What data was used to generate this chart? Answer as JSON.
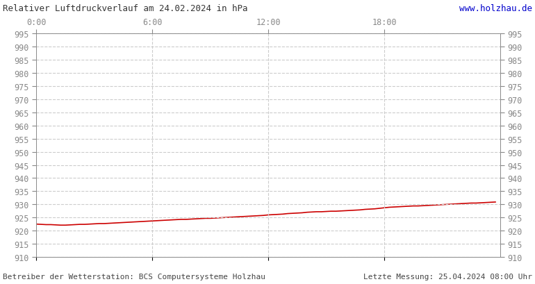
{
  "title_left": "Relativer Luftdruckverlauf am 24.02.2024 in hPa",
  "title_right": "www.holzhau.de",
  "title_right_color": "#0000cc",
  "footer_left": "Betreiber der Wetterstation: BCS Computersysteme Holzhau",
  "footer_right": "Letzte Messung: 25.04.2024 08:00 Uhr",
  "footer_color": "#444444",
  "background_color": "#ffffff",
  "plot_bg_color": "#ffffff",
  "line_color": "#cc0000",
  "line_width": 1.2,
  "ylim": [
    910,
    995
  ],
  "ytick_step": 5,
  "xtick_positions": [
    0,
    6,
    12,
    18
  ],
  "xtick_labels": [
    "0:00",
    "6:00",
    "12:00",
    "18:00"
  ],
  "grid_color": "#cccccc",
  "grid_linestyle": "--",
  "grid_linewidth": 0.8,
  "tick_color": "#888888",
  "label_color": "#888888",
  "fontsize": 8.5,
  "x_hours": [
    0.0,
    0.25,
    0.5,
    0.75,
    1.0,
    1.25,
    1.5,
    1.75,
    2.0,
    2.25,
    2.5,
    2.75,
    3.0,
    3.25,
    3.5,
    3.75,
    4.0,
    4.25,
    4.5,
    4.75,
    5.0,
    5.25,
    5.5,
    5.75,
    6.0,
    6.25,
    6.5,
    6.75,
    7.0,
    7.25,
    7.5,
    7.75,
    8.0,
    8.25,
    8.5,
    8.75,
    9.0,
    9.25,
    9.5,
    9.75,
    10.0,
    10.25,
    10.5,
    10.75,
    11.0,
    11.25,
    11.5,
    11.75,
    12.0,
    12.25,
    12.5,
    12.75,
    13.0,
    13.25,
    13.5,
    13.75,
    14.0,
    14.25,
    14.5,
    14.75,
    15.0,
    15.25,
    15.5,
    15.75,
    16.0,
    16.25,
    16.5,
    16.75,
    17.0,
    17.25,
    17.5,
    17.75,
    18.0,
    18.25,
    18.5,
    18.75,
    19.0,
    19.25,
    19.5,
    19.75,
    20.0,
    20.25,
    20.5,
    20.75,
    21.0,
    21.25,
    21.5,
    21.75,
    22.0,
    22.25,
    22.5,
    22.75,
    23.0,
    23.25,
    23.5,
    23.75
  ],
  "y_values": [
    922.5,
    922.4,
    922.3,
    922.3,
    922.2,
    922.1,
    922.1,
    922.2,
    922.3,
    922.4,
    922.4,
    922.5,
    922.6,
    922.7,
    922.7,
    922.8,
    922.9,
    923.0,
    923.1,
    923.2,
    923.3,
    923.4,
    923.5,
    923.6,
    923.7,
    923.8,
    923.9,
    924.0,
    924.1,
    924.2,
    924.3,
    924.3,
    924.4,
    924.5,
    924.6,
    924.7,
    924.7,
    924.8,
    924.9,
    925.0,
    925.1,
    925.2,
    925.3,
    925.4,
    925.5,
    925.6,
    925.7,
    925.8,
    926.0,
    926.1,
    926.2,
    926.3,
    926.5,
    926.6,
    926.7,
    926.8,
    927.0,
    927.1,
    927.2,
    927.2,
    927.3,
    927.4,
    927.4,
    927.5,
    927.6,
    927.7,
    927.8,
    927.9,
    928.1,
    928.2,
    928.3,
    928.5,
    928.7,
    928.9,
    929.0,
    929.1,
    929.2,
    929.3,
    929.4,
    929.4,
    929.5,
    929.6,
    929.7,
    929.8,
    929.9,
    930.0,
    930.1,
    930.2,
    930.3,
    930.4,
    930.5,
    930.5,
    930.6,
    930.7,
    930.8,
    930.9
  ]
}
